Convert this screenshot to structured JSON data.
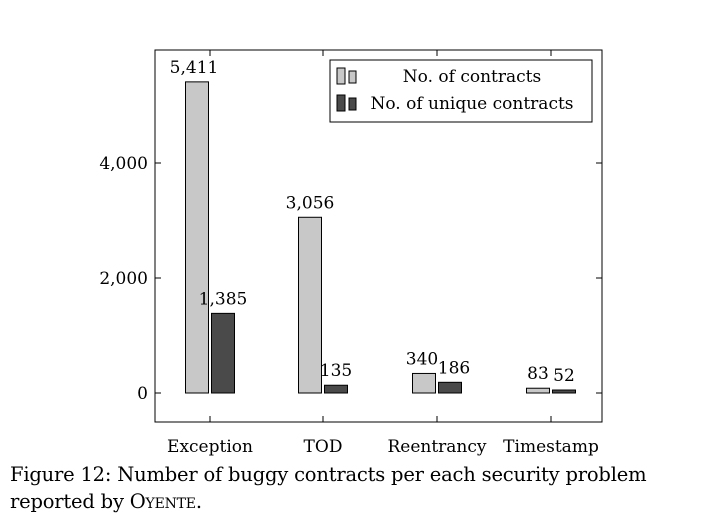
{
  "chart_data": {
    "type": "bar",
    "title": "",
    "xlabel": "",
    "ylabel": "",
    "categories": [
      "Exception",
      "TOD",
      "Reentrancy",
      "Timestamp"
    ],
    "series": [
      {
        "name": "No. of contracts",
        "values": [
          5411,
          3056,
          340,
          83
        ],
        "labels": [
          "5,411",
          "3,056",
          "340",
          "83"
        ],
        "color": "#c8c8c8"
      },
      {
        "name": "No. of unique contracts",
        "values": [
          1385,
          135,
          186,
          52
        ],
        "labels": [
          "1,385",
          "135",
          "186",
          "52"
        ],
        "color": "#4a4a4a"
      }
    ],
    "yticks": [
      0,
      2000,
      4000
    ],
    "ytick_labels": [
      "0",
      "2,000",
      "4,000"
    ],
    "ylim": [
      -500,
      6000
    ],
    "grid": false,
    "legend_position": "top-right"
  },
  "caption": {
    "prefix": "Figure 12: Number of buggy contracts per each security problem reported by ",
    "tool": "Oyente",
    "suffix": "."
  }
}
